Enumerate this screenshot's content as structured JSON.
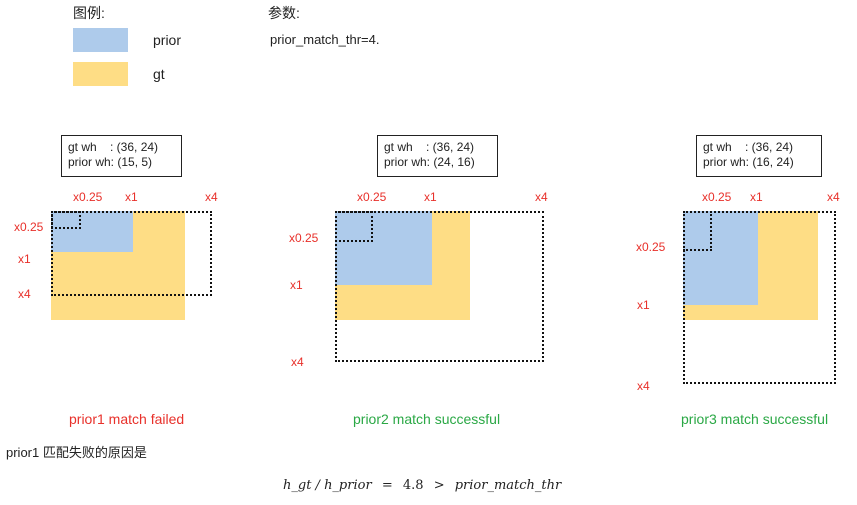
{
  "legend": {
    "title": "图例:",
    "items": [
      {
        "label": "prior",
        "color": "#aecbeb"
      },
      {
        "label": "gt",
        "color": "#fedd85"
      }
    ]
  },
  "params": {
    "title": "参数:",
    "value": "prior_match_thr=4."
  },
  "panels": [
    {
      "info": [
        "gt wh    : (36, 24)",
        "prior wh: (15, 5)"
      ],
      "scales_x": [
        "x0.25",
        "x1",
        "x4"
      ],
      "scales_y": [
        "x0.25",
        "x1",
        "x4"
      ],
      "caption": "prior1 match failed",
      "status": "failed",
      "status_color": "#e8302a"
    },
    {
      "info": [
        "gt wh    : (36, 24)",
        "prior wh: (24, 16)"
      ],
      "scales_x": [
        "x0.25",
        "x1",
        "x4"
      ],
      "scales_y": [
        "x0.25",
        "x1",
        "x4"
      ],
      "caption": "prior2 match successful",
      "status": "successful",
      "status_color": "#2aa845"
    },
    {
      "info": [
        "gt wh    : (36, 24)",
        "prior wh: (16, 24)"
      ],
      "scales_x": [
        "x0.25",
        "x1",
        "x4"
      ],
      "scales_y": [
        "x0.25",
        "x1",
        "x4"
      ],
      "caption": "prior3 match successful",
      "status": "successful",
      "status_color": "#2aa845"
    }
  ],
  "note": "prior1 匹配失败的原因是",
  "formula": {
    "lhs": "h_gt / h_prior",
    "eq": "=",
    "value": "4.8",
    "op": ">",
    "rhs": "prior_match_thr"
  }
}
